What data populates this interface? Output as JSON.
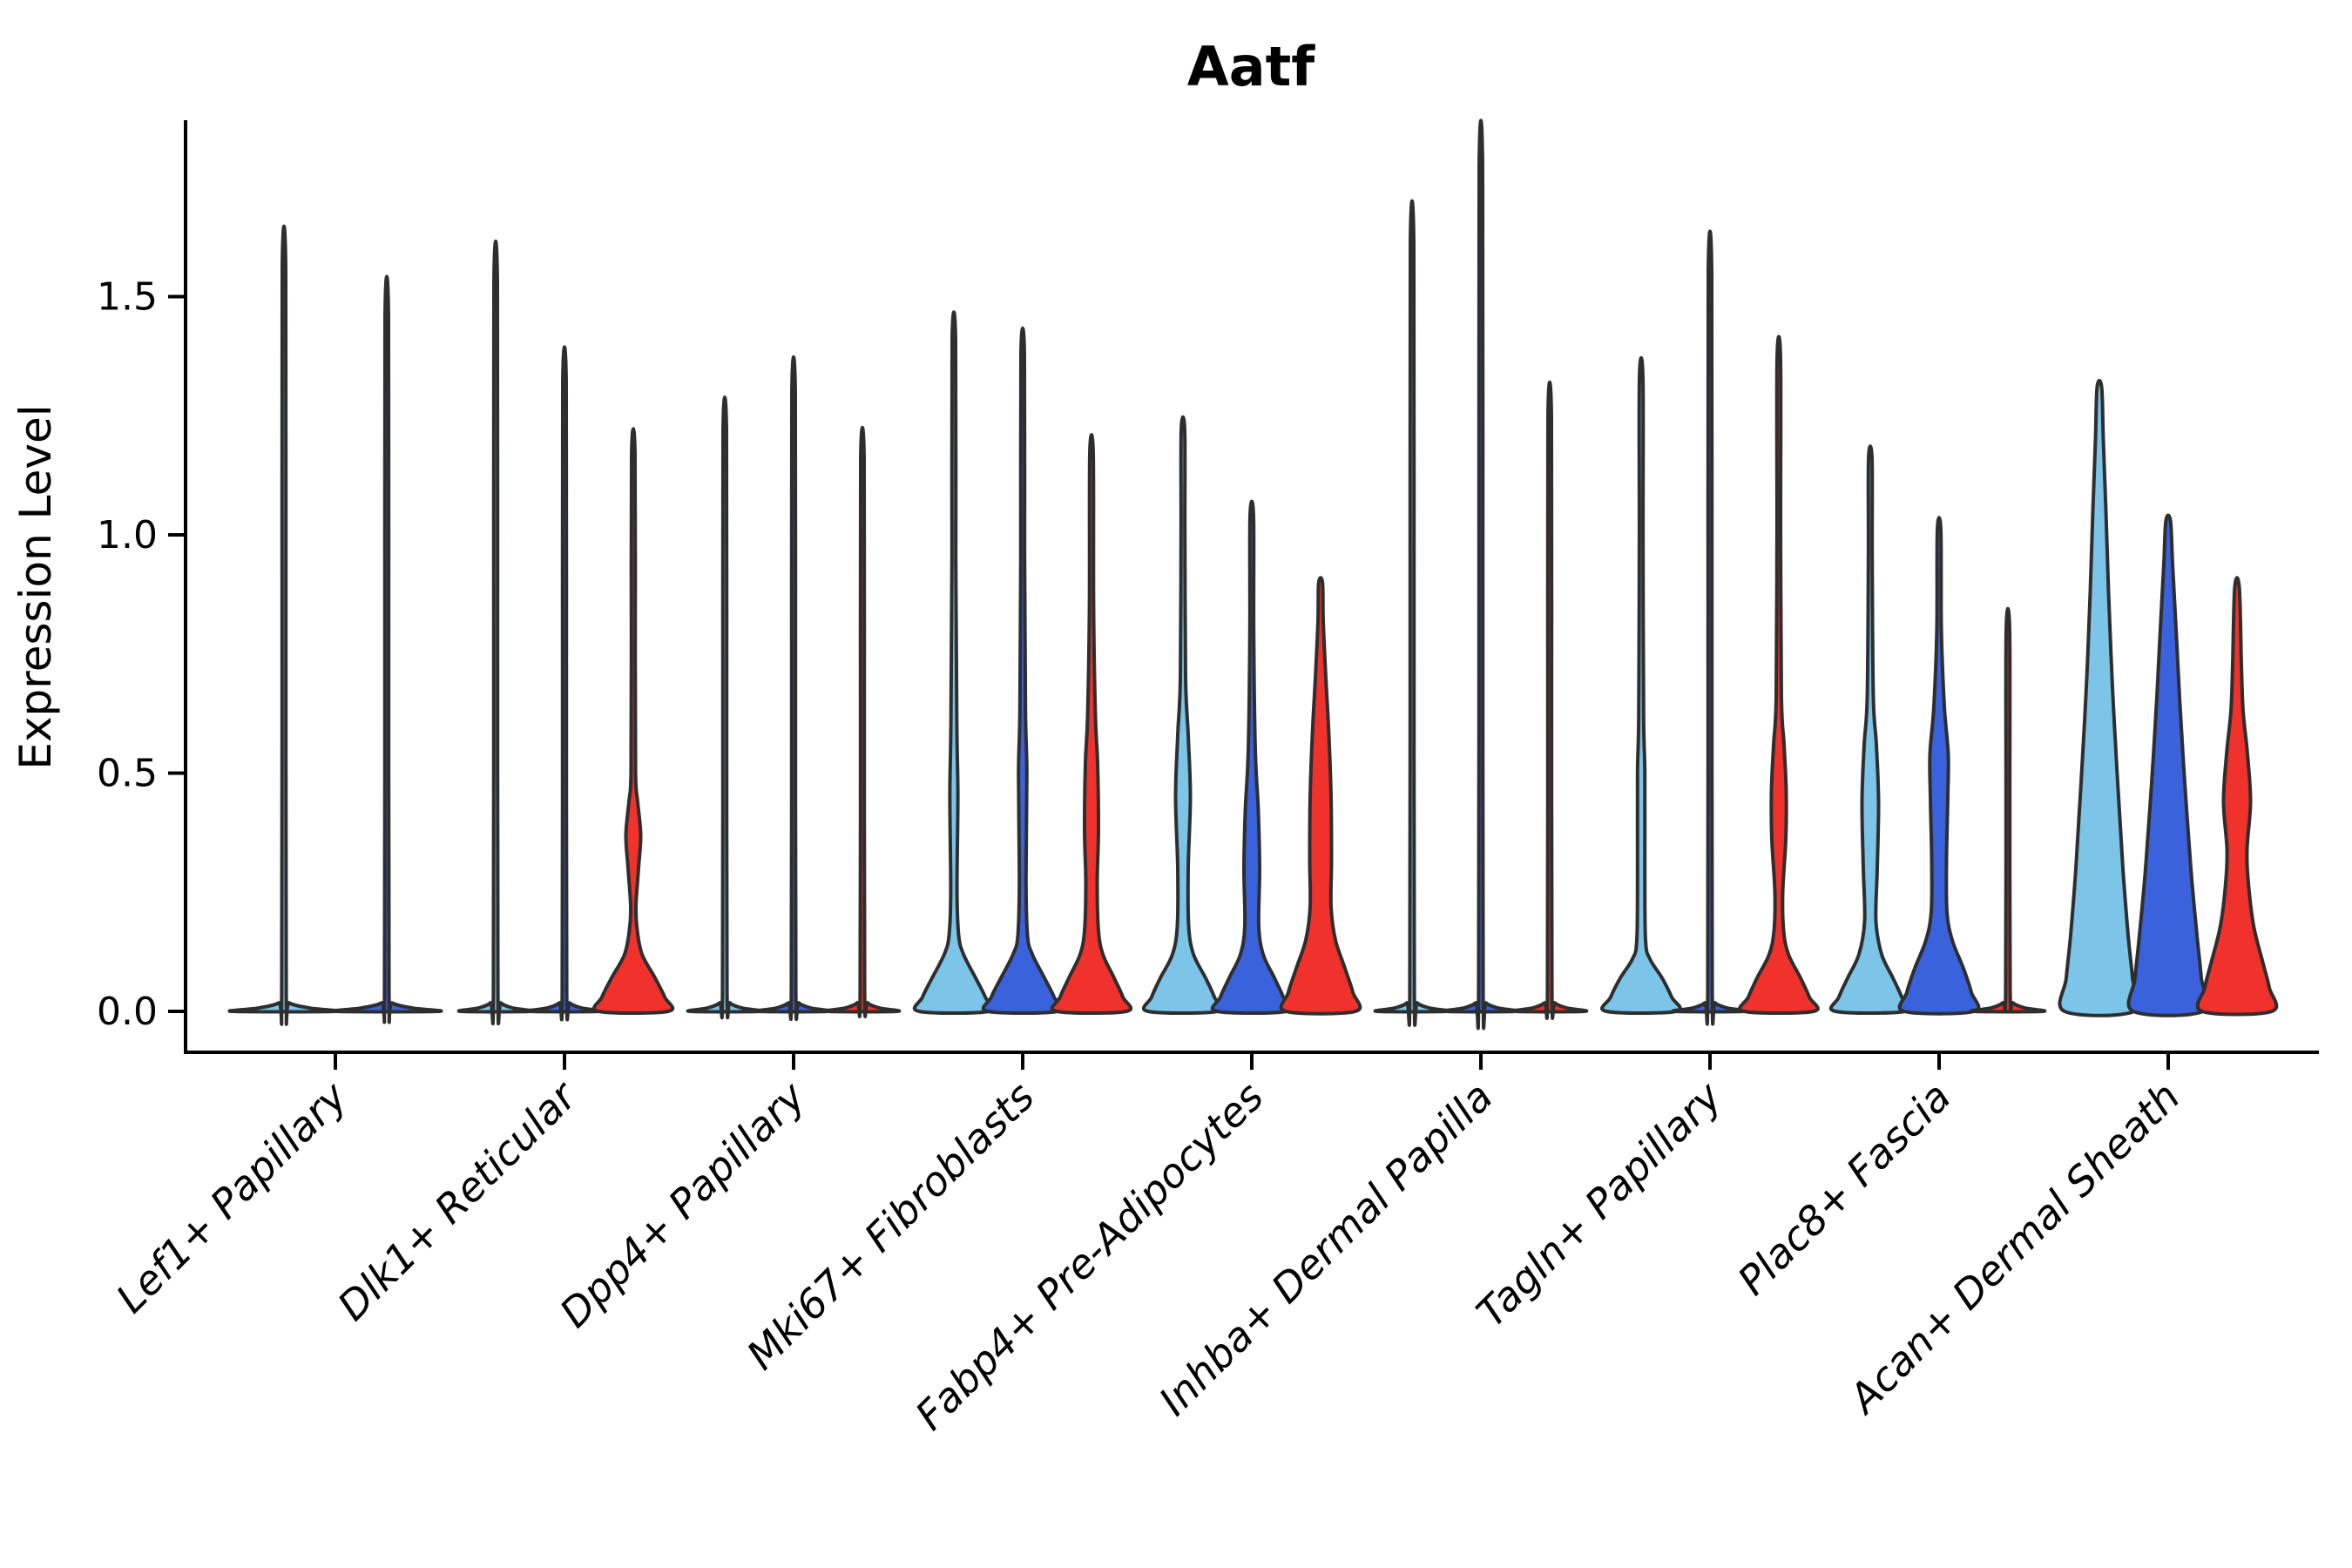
{
  "title": "Aatf",
  "axes": {
    "ylabel": "Expression Level",
    "ytick_labels": [
      "0.0",
      "0.5",
      "1.0",
      "1.5"
    ]
  },
  "chart_data": {
    "type": "violin",
    "title": "Aatf",
    "ylabel": "Expression Level",
    "xlabel": "",
    "ylim": [
      -0.06,
      1.87
    ],
    "yticks": [
      0.0,
      0.5,
      1.0,
      1.5
    ],
    "grid": false,
    "legend_position": "none",
    "series_colors": [
      "#7CC4E8",
      "#3B62DD",
      "#F1312B"
    ],
    "outline_color": "#2E2E2E",
    "categories": [
      "Lef1+ Papillary",
      "Dlk1+ Reticular",
      "Dpp4+ Papillary",
      "Mki67+ Fibroblasts",
      "Fabp4+ Pre-Adipocytes",
      "Inhba+ Dermal Papilla",
      "Tagln+ Papillary",
      "Plac8+ Fascia",
      "Acan+ Dermal Sheath"
    ],
    "groups": [
      {
        "category": "Lef1+ Papillary",
        "violins": [
          {
            "series": 0,
            "max": 1.56,
            "offset": -59,
            "base_halfwidth": 59,
            "profile": null
          },
          {
            "series": 1,
            "max": 1.46,
            "offset": 59,
            "base_halfwidth": 59,
            "profile": null
          }
        ]
      },
      {
        "category": "Dlk1+ Reticular",
        "violins": [
          {
            "series": 0,
            "max": 1.53,
            "offset": -79,
            "base_halfwidth": 40,
            "profile": null
          },
          {
            "series": 1,
            "max": 1.32,
            "offset": 0,
            "base_halfwidth": 40,
            "profile": null
          },
          {
            "series": 2,
            "max": 1.17,
            "offset": 79,
            "base_halfwidth": 40,
            "profile": [
              [
                0,
                40
              ],
              [
                0.03,
                36
              ],
              [
                0.07,
                25
              ],
              [
                0.12,
                10
              ],
              [
                0.17,
                4.5
              ],
              [
                0.22,
                3
              ],
              [
                0.3,
                6
              ],
              [
                0.37,
                8.5
              ],
              [
                0.44,
                5
              ],
              [
                0.5,
                2.6
              ],
              [
                0.75,
                2.2
              ],
              [
                1.17,
                2.0
              ]
            ]
          }
        ]
      },
      {
        "category": "Dpp4+ Papillary",
        "violins": [
          {
            "series": 0,
            "max": 1.22,
            "offset": -79,
            "base_halfwidth": 40,
            "profile": null
          },
          {
            "series": 1,
            "max": 1.3,
            "offset": 0,
            "base_halfwidth": 40,
            "profile": null
          },
          {
            "series": 2,
            "max": 1.16,
            "offset": 79,
            "base_halfwidth": 40,
            "profile": null
          }
        ]
      },
      {
        "category": "Mki67+ Fibroblasts",
        "violins": [
          {
            "series": 0,
            "max": 1.41,
            "offset": -79,
            "base_halfwidth": 40,
            "profile": [
              [
                0,
                40
              ],
              [
                0.03,
                36
              ],
              [
                0.07,
                25
              ],
              [
                0.12,
                11
              ],
              [
                0.16,
                5.5
              ],
              [
                0.25,
                3.6
              ],
              [
                0.45,
                4.6
              ],
              [
                0.6,
                3.4
              ],
              [
                0.95,
                2.2
              ],
              [
                1.41,
                2.0
              ]
            ]
          },
          {
            "series": 1,
            "max": 1.38,
            "offset": 0,
            "base_halfwidth": 40,
            "profile": [
              [
                0,
                40
              ],
              [
                0.03,
                36
              ],
              [
                0.07,
                25
              ],
              [
                0.12,
                11
              ],
              [
                0.16,
                5.5
              ],
              [
                0.28,
                3.8
              ],
              [
                0.5,
                4.8
              ],
              [
                0.63,
                3.2
              ],
              [
                0.95,
                2.2
              ],
              [
                1.38,
                2.0
              ]
            ]
          },
          {
            "series": 2,
            "max": 1.17,
            "offset": 79,
            "base_halfwidth": 40,
            "profile": [
              [
                0,
                40
              ],
              [
                0.03,
                36
              ],
              [
                0.07,
                26
              ],
              [
                0.12,
                13
              ],
              [
                0.17,
                8
              ],
              [
                0.27,
                6.5
              ],
              [
                0.38,
                8
              ],
              [
                0.52,
                7
              ],
              [
                0.62,
                4.5
              ],
              [
                0.85,
                2.4
              ],
              [
                1.17,
                2.0
              ]
            ]
          }
        ]
      },
      {
        "category": "Fabp4+ Pre-Adipocytes",
        "violins": [
          {
            "series": 0,
            "max": 1.22,
            "offset": -79,
            "base_halfwidth": 40,
            "profile": [
              [
                0,
                40
              ],
              [
                0.03,
                36
              ],
              [
                0.07,
                26
              ],
              [
                0.12,
                12
              ],
              [
                0.18,
                6.5
              ],
              [
                0.3,
                6
              ],
              [
                0.45,
                8.5
              ],
              [
                0.58,
                6
              ],
              [
                0.7,
                3
              ],
              [
                1.0,
                2.2
              ],
              [
                1.22,
                2.0
              ]
            ]
          },
          {
            "series": 1,
            "max": 1.04,
            "offset": 0,
            "base_halfwidth": 40,
            "profile": [
              [
                0,
                40
              ],
              [
                0.03,
                36
              ],
              [
                0.07,
                26
              ],
              [
                0.12,
                13
              ],
              [
                0.18,
                8
              ],
              [
                0.3,
                9
              ],
              [
                0.42,
                7.5
              ],
              [
                0.55,
                4
              ],
              [
                0.8,
                2.2
              ],
              [
                1.04,
                2.0
              ]
            ]
          },
          {
            "series": 2,
            "max": 0.9,
            "offset": 79,
            "base_halfwidth": 40,
            "profile": [
              [
                0,
                40
              ],
              [
                0.04,
                37
              ],
              [
                0.09,
                28
              ],
              [
                0.15,
                17
              ],
              [
                0.22,
                12
              ],
              [
                0.32,
                12.5
              ],
              [
                0.45,
                12
              ],
              [
                0.58,
                9.5
              ],
              [
                0.7,
                6
              ],
              [
                0.82,
                3
              ],
              [
                0.9,
                2.2
              ]
            ]
          }
        ]
      },
      {
        "category": "Inhba+ Dermal Papilla",
        "violins": [
          {
            "series": 0,
            "max": 1.61,
            "offset": -79,
            "base_halfwidth": 40,
            "profile": null
          },
          {
            "series": 1,
            "max": 1.77,
            "offset": 0,
            "base_halfwidth": 40,
            "profile": null
          },
          {
            "series": 2,
            "max": 1.25,
            "offset": 79,
            "base_halfwidth": 40,
            "profile": null
          }
        ]
      },
      {
        "category": "Tagln+ Papillary",
        "violins": [
          {
            "series": 0,
            "max": 1.33,
            "offset": -79,
            "base_halfwidth": 40,
            "profile": [
              [
                0,
                40
              ],
              [
                0.03,
                35
              ],
              [
                0.07,
                24
              ],
              [
                0.11,
                10
              ],
              [
                0.15,
                5
              ],
              [
                0.3,
                4.2
              ],
              [
                0.5,
                4.2
              ],
              [
                0.62,
                2.8
              ],
              [
                1.0,
                2.1
              ],
              [
                1.33,
                2.0
              ]
            ]
          },
          {
            "series": 1,
            "max": 1.55,
            "offset": 0,
            "base_halfwidth": 40,
            "profile": null
          },
          {
            "series": 2,
            "max": 1.37,
            "offset": 79,
            "base_halfwidth": 40,
            "profile": [
              [
                0,
                40
              ],
              [
                0.03,
                35
              ],
              [
                0.07,
                25
              ],
              [
                0.12,
                11
              ],
              [
                0.17,
                5.5
              ],
              [
                0.25,
                4.5
              ],
              [
                0.36,
                8
              ],
              [
                0.46,
                8.5
              ],
              [
                0.56,
                6
              ],
              [
                0.66,
                3
              ],
              [
                1.0,
                2.1
              ],
              [
                1.37,
                2.0
              ]
            ]
          }
        ]
      },
      {
        "category": "Plac8+ Fascia",
        "violins": [
          {
            "series": 0,
            "max": 1.16,
            "offset": -79,
            "base_halfwidth": 40,
            "profile": [
              [
                0,
                40
              ],
              [
                0.03,
                36
              ],
              [
                0.07,
                26
              ],
              [
                0.12,
                13
              ],
              [
                0.19,
                6.5
              ],
              [
                0.3,
                8
              ],
              [
                0.44,
                9.5
              ],
              [
                0.56,
                7
              ],
              [
                0.66,
                3.5
              ],
              [
                0.95,
                2.2
              ],
              [
                1.16,
                2.0
              ]
            ]
          },
          {
            "series": 1,
            "max": 1.01,
            "offset": 0,
            "base_halfwidth": 40,
            "profile": [
              [
                0,
                40
              ],
              [
                0.04,
                37
              ],
              [
                0.09,
                28
              ],
              [
                0.15,
                15
              ],
              [
                0.21,
                9
              ],
              [
                0.32,
                8.5
              ],
              [
                0.45,
                10
              ],
              [
                0.54,
                10.5
              ],
              [
                0.64,
                6
              ],
              [
                0.8,
                2.6
              ],
              [
                1.01,
                2.0
              ]
            ]
          },
          {
            "series": 2,
            "max": 0.8,
            "offset": 79,
            "base_halfwidth": 40,
            "profile": null
          }
        ]
      },
      {
        "category": "Acan+ Dermal Sheath",
        "violins": [
          {
            "series": 0,
            "max": 1.31,
            "offset": -79,
            "base_halfwidth": 40,
            "profile": [
              [
                0,
                40
              ],
              [
                0.07,
                38
              ],
              [
                0.16,
                33
              ],
              [
                0.3,
                27
              ],
              [
                0.48,
                21
              ],
              [
                0.68,
                15
              ],
              [
                0.88,
                10.5
              ],
              [
                1.05,
                7.5
              ],
              [
                1.2,
                4.5
              ],
              [
                1.31,
                2.6
              ]
            ]
          },
          {
            "series": 1,
            "max": 1.03,
            "offset": 0,
            "base_halfwidth": 40,
            "profile": [
              [
                0,
                40
              ],
              [
                0.07,
                38
              ],
              [
                0.16,
                33
              ],
              [
                0.3,
                26
              ],
              [
                0.48,
                19
              ],
              [
                0.66,
                13
              ],
              [
                0.82,
                8.5
              ],
              [
                0.94,
                5
              ],
              [
                1.03,
                2.6
              ]
            ]
          },
          {
            "series": 2,
            "max": 0.89,
            "offset": 79,
            "base_halfwidth": 40,
            "profile": [
              [
                0,
                40
              ],
              [
                0.05,
                37
              ],
              [
                0.1,
                30
              ],
              [
                0.18,
                19
              ],
              [
                0.27,
                13
              ],
              [
                0.34,
                11.5
              ],
              [
                0.44,
                15.5
              ],
              [
                0.54,
                12
              ],
              [
                0.63,
                7
              ],
              [
                0.73,
                5
              ],
              [
                0.89,
                2.6
              ]
            ]
          }
        ]
      }
    ]
  }
}
